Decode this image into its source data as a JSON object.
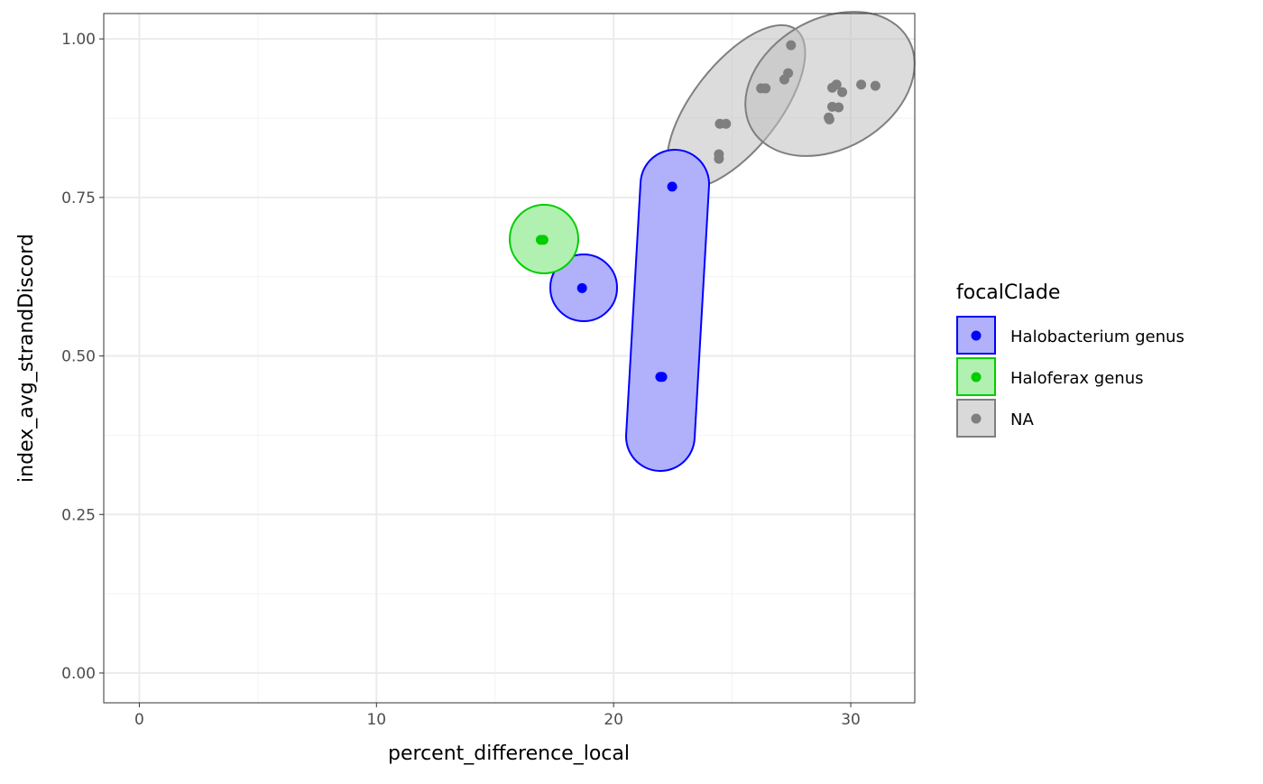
{
  "chart_data": {
    "type": "scatter",
    "xlabel": "percent_difference_local",
    "ylabel": "index_avg_strandDiscord",
    "xlim": [
      -1.5,
      32.7
    ],
    "ylim": [
      -0.047,
      1.04
    ],
    "xticks": [
      0,
      10,
      20,
      30
    ],
    "xtick_labels": [
      "0",
      "10",
      "20",
      "30"
    ],
    "yticks": [
      0,
      0.25,
      0.5,
      0.75,
      1.0
    ],
    "ytick_labels": [
      "0.00",
      "0.25",
      "0.50",
      "0.75",
      "1.00"
    ],
    "grid": true,
    "legend": {
      "title": "focalClade",
      "placement": "right"
    },
    "series": [
      {
        "name": "Halobacterium genus",
        "color": "#0000ff",
        "fill": "#b0b0fb",
        "x": [
          18.67,
          22.47,
          21.97,
          22.05
        ],
        "y": [
          0.607,
          0.767,
          0.467,
          0.467
        ]
      },
      {
        "name": "Haloferax genus",
        "color": "#00cd00",
        "fill": "#b0f0b0",
        "x": [
          16.93,
          17.04
        ],
        "y": [
          0.683,
          0.683
        ]
      },
      {
        "name": "NA",
        "color": "#7f7f7f",
        "fill": "#d9d9d9",
        "x": [
          27.48,
          27.36,
          27.2,
          26.22,
          26.41,
          24.48,
          24.74,
          24.44,
          24.44,
          29.07,
          29.1,
          29.22,
          29.4,
          29.64,
          29.22,
          29.49,
          30.44,
          31.04
        ],
        "y": [
          0.99,
          0.946,
          0.936,
          0.922,
          0.922,
          0.866,
          0.866,
          0.818,
          0.811,
          0.876,
          0.873,
          0.923,
          0.928,
          0.916,
          0.893,
          0.892,
          0.928,
          0.926
        ]
      }
    ]
  }
}
